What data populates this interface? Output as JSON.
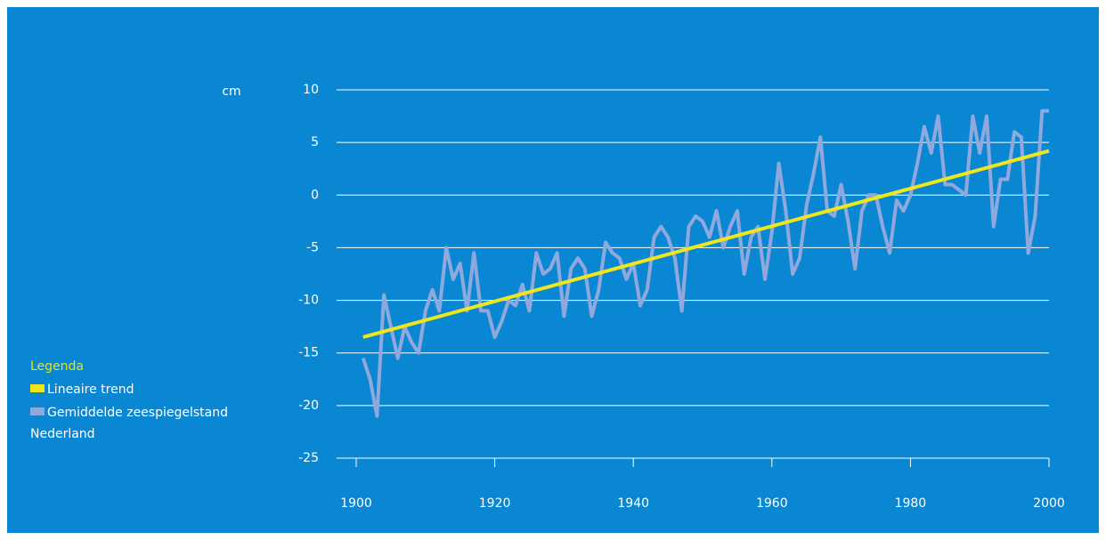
{
  "chart_data": {
    "type": "line",
    "y_label": "cm",
    "legend_title": "Legenda",
    "legend_title_color": "#e8e21a",
    "background": "#0a87d2",
    "xlim": [
      1900,
      2000
    ],
    "xticks": [
      1900,
      1920,
      1940,
      1960,
      1980,
      2000
    ],
    "ylim": [
      -25,
      10
    ],
    "yticks": [
      -25,
      -20,
      -15,
      -10,
      -5,
      0,
      5,
      10
    ],
    "grid": true,
    "series": [
      {
        "name": "Lineaire trend",
        "color": "#efe71c",
        "x": [
          1901,
          2000
        ],
        "values": [
          -13.5,
          4.2
        ]
      },
      {
        "name": "Gemiddelde zeespiegelstand Nederland",
        "color": "#8fa8de",
        "x": [
          1901,
          1902,
          1903,
          1904,
          1905,
          1906,
          1907,
          1908,
          1909,
          1910,
          1911,
          1912,
          1913,
          1914,
          1915,
          1916,
          1917,
          1918,
          1919,
          1920,
          1921,
          1922,
          1923,
          1924,
          1925,
          1926,
          1927,
          1928,
          1929,
          1930,
          1931,
          1932,
          1933,
          1934,
          1935,
          1936,
          1937,
          1938,
          1939,
          1940,
          1941,
          1942,
          1943,
          1944,
          1945,
          1946,
          1947,
          1948,
          1949,
          1950,
          1951,
          1952,
          1953,
          1954,
          1955,
          1956,
          1957,
          1958,
          1959,
          1960,
          1961,
          1962,
          1963,
          1964,
          1965,
          1966,
          1967,
          1968,
          1969,
          1970,
          1971,
          1972,
          1973,
          1974,
          1975,
          1976,
          1977,
          1978,
          1979,
          1980,
          1981,
          1982,
          1983,
          1984,
          1985,
          1986,
          1987,
          1988,
          1989,
          1990,
          1991,
          1992,
          1993,
          1994,
          1995,
          1996,
          1997,
          1998,
          1999,
          2000
        ],
        "values": [
          -15.5,
          -17.5,
          -21,
          -9.5,
          -12.5,
          -15.5,
          -12.5,
          -14,
          -15,
          -11,
          -9,
          -11,
          -5,
          -8,
          -6.5,
          -11,
          -5.5,
          -11,
          -11,
          -13.5,
          -12,
          -10,
          -10.5,
          -8.5,
          -11,
          -5.5,
          -7.5,
          -7,
          -5.5,
          -11.5,
          -7,
          -6,
          -7,
          -11.5,
          -9,
          -4.5,
          -5.5,
          -6,
          -8,
          -6.5,
          -10.5,
          -9,
          -4,
          -3,
          -4,
          -6,
          -11,
          -3,
          -2,
          -2.5,
          -4,
          -1.5,
          -5,
          -3,
          -1.5,
          -7.5,
          -4,
          -3,
          -8,
          -3.5,
          3,
          -1.5,
          -7.5,
          -6,
          -1,
          2,
          5.5,
          -1.5,
          -2,
          1,
          -2.5,
          -7,
          -1.5,
          0,
          0,
          -3,
          -5.5,
          -0.5,
          -1.5,
          0,
          3,
          6.5,
          4,
          7.5,
          1,
          1,
          0.5,
          0,
          7.5,
          4,
          7.5,
          -3,
          1.5,
          1.5,
          6,
          5.5,
          -5.5,
          -2,
          8,
          8
        ]
      }
    ]
  }
}
